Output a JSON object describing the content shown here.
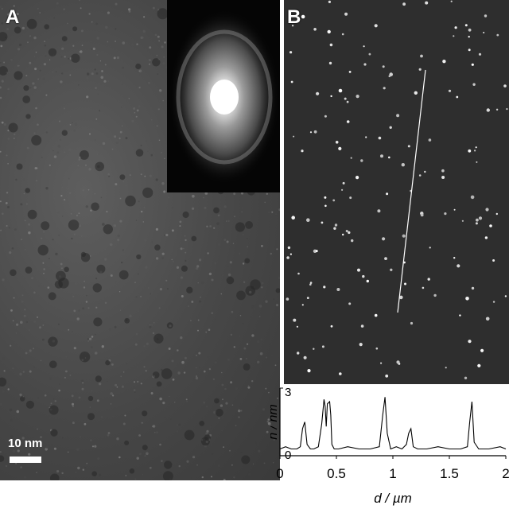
{
  "panel_a": {
    "letter": "A",
    "scale_bar_label": "10 nm"
  },
  "panel_b": {
    "letter": "B"
  },
  "chart_data": {
    "type": "line",
    "xlabel": "d / µm",
    "ylabel": "h / nm",
    "x_ticks": [
      "0",
      "0.5",
      "1",
      "1.5",
      "2"
    ],
    "y_ticks": [
      "0",
      "3"
    ],
    "xlim": [
      0,
      2.0
    ],
    "ylim": [
      0,
      3
    ],
    "series": [
      {
        "x": [
          0.0,
          0.05,
          0.1,
          0.15,
          0.18,
          0.2,
          0.22,
          0.24,
          0.27,
          0.3,
          0.34,
          0.37,
          0.39,
          0.4,
          0.41,
          0.42,
          0.44,
          0.45,
          0.46,
          0.48,
          0.52,
          0.6,
          0.7,
          0.8,
          0.88,
          0.91,
          0.93,
          0.95,
          0.98,
          1.03,
          1.08,
          1.12,
          1.14,
          1.16,
          1.18,
          1.22,
          1.3,
          1.4,
          1.5,
          1.6,
          1.66,
          1.68,
          1.7,
          1.72,
          1.76,
          1.85,
          1.95,
          2.0
        ],
        "y": [
          0.3,
          0.4,
          0.3,
          0.3,
          0.4,
          1.2,
          1.5,
          0.5,
          0.3,
          0.3,
          0.4,
          1.4,
          2.5,
          2.2,
          1.3,
          2.3,
          2.4,
          1.8,
          0.5,
          0.3,
          0.3,
          0.4,
          0.3,
          0.3,
          0.4,
          1.8,
          2.6,
          1.0,
          0.3,
          0.4,
          0.3,
          0.5,
          1.0,
          1.2,
          0.4,
          0.3,
          0.3,
          0.4,
          0.3,
          0.3,
          0.4,
          1.5,
          2.4,
          0.6,
          0.3,
          0.3,
          0.4,
          0.3
        ]
      }
    ]
  }
}
